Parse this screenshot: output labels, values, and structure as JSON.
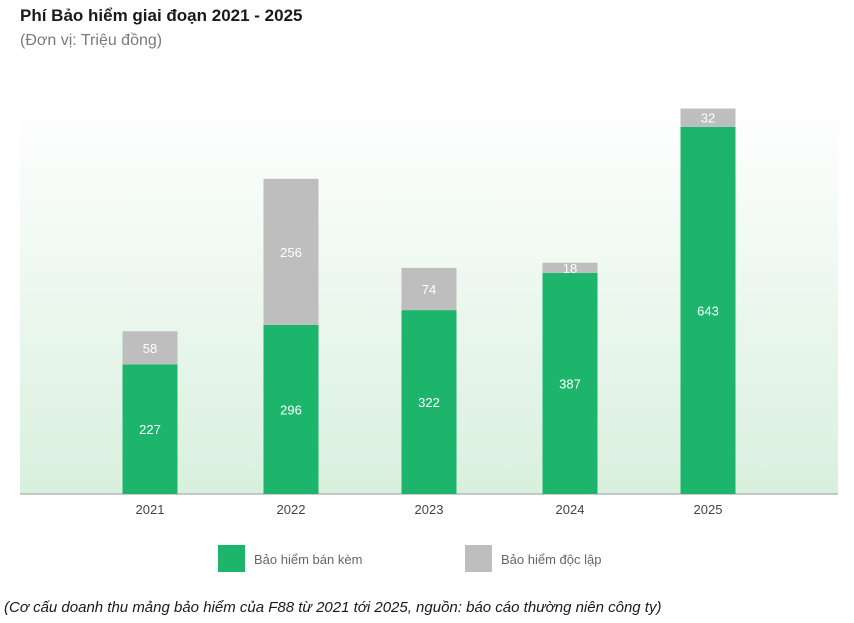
{
  "chart_data": {
    "type": "bar",
    "stacked": true,
    "title": "Phí Bảo hiểm giai đoạn 2021 - 2025",
    "subtitle": "(Đơn vị: Triệu đồng)",
    "categories": [
      "2021",
      "2022",
      "2023",
      "2024",
      "2025"
    ],
    "series": [
      {
        "name": "Bảo hiểm bán kèm",
        "values": [
          227,
          296,
          322,
          387,
          643
        ],
        "color": "#1db56b"
      },
      {
        "name": "Bảo hiểm độc lập",
        "values": [
          58,
          256,
          74,
          18,
          32
        ],
        "color": "#bebebe"
      }
    ],
    "ylim": [
      0,
      690
    ],
    "grid": false,
    "legend_position": "bottom",
    "background": "light green gradient"
  },
  "caption": "(Cơ cấu doanh thu mảng bảo hiểm của F88 từ 2021 tới 2025, nguồn: báo cáo thường niên công ty)"
}
